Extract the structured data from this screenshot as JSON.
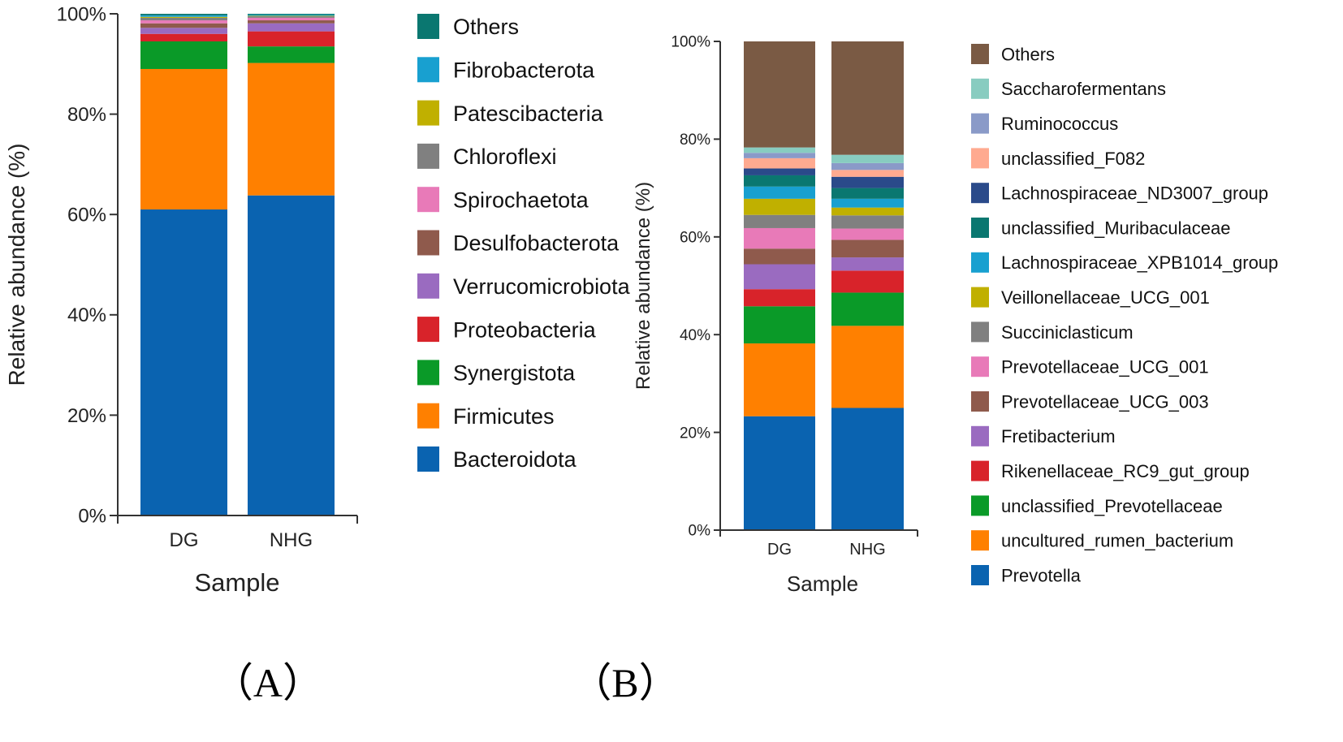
{
  "chart_data": [
    {
      "type": "bar",
      "stacked": true,
      "panel_label": "（A）",
      "title": "",
      "xlabel": "Sample",
      "ylabel": "Relative abundance (%)",
      "categories": [
        "DG",
        "NHG"
      ],
      "ylim": [
        0,
        100
      ],
      "yticks": [
        "0%",
        "20%",
        "40%",
        "60%",
        "80%",
        "100%"
      ],
      "legend_position": "right",
      "series": [
        {
          "name": "Bacteroidota",
          "color": "#0a63b0",
          "values": [
            61.0,
            63.8
          ]
        },
        {
          "name": "Firmicutes",
          "color": "#ff8000",
          "values": [
            28.0,
            26.4
          ]
        },
        {
          "name": "Synergistota",
          "color": "#0a9a28",
          "values": [
            5.5,
            3.3
          ]
        },
        {
          "name": "Proteobacteria",
          "color": "#d8232a",
          "values": [
            1.5,
            3.0
          ]
        },
        {
          "name": "Verrucomicrobiota",
          "color": "#9a6bc0",
          "values": [
            1.2,
            1.6
          ]
        },
        {
          "name": "Desulfobacterota",
          "color": "#8f5a4c",
          "values": [
            0.9,
            0.6
          ]
        },
        {
          "name": "Spirochaetota",
          "color": "#e87ab8",
          "values": [
            0.6,
            0.5
          ]
        },
        {
          "name": "Chloroflexi",
          "color": "#808080",
          "values": [
            0.5,
            0.3
          ]
        },
        {
          "name": "Patescibacteria",
          "color": "#c0b000",
          "values": [
            0.2,
            0.1
          ]
        },
        {
          "name": "Fibrobacterota",
          "color": "#18a0d0",
          "values": [
            0.3,
            0.2
          ]
        },
        {
          "name": "Others",
          "color": "#0a7770",
          "values": [
            0.3,
            0.2
          ]
        }
      ]
    },
    {
      "type": "bar",
      "stacked": true,
      "panel_label": "（B）",
      "title": "",
      "xlabel": "Sample",
      "ylabel": "Relative abundance (%)",
      "categories": [
        "DG",
        "NHG"
      ],
      "ylim": [
        0,
        100
      ],
      "yticks": [
        "0%",
        "20%",
        "40%",
        "60%",
        "80%",
        "100%"
      ],
      "legend_position": "right",
      "series": [
        {
          "name": "Prevotella",
          "color": "#0a63b0",
          "values": [
            23.3,
            25.0
          ]
        },
        {
          "name": "uncultured_rumen_bacterium",
          "color": "#ff8000",
          "values": [
            14.9,
            16.8
          ]
        },
        {
          "name": "unclassified_Prevotellaceae",
          "color": "#0a9a28",
          "values": [
            7.6,
            6.8
          ]
        },
        {
          "name": "Rikenellaceae_RC9_gut_group",
          "color": "#d8232a",
          "values": [
            3.5,
            4.5
          ]
        },
        {
          "name": "Fretibacterium",
          "color": "#9a6bc0",
          "values": [
            5.1,
            2.7
          ]
        },
        {
          "name": "Prevotellaceae_UCG_003",
          "color": "#8f5a4c",
          "values": [
            3.2,
            3.6
          ]
        },
        {
          "name": "Prevotellaceae_UCG_001",
          "color": "#e87ab8",
          "values": [
            4.2,
            2.3
          ]
        },
        {
          "name": "Succiniclasticum",
          "color": "#808080",
          "values": [
            2.7,
            2.7
          ]
        },
        {
          "name": "Veillonellaceae_UCG_001",
          "color": "#c0b000",
          "values": [
            3.3,
            1.6
          ]
        },
        {
          "name": "Lachnospiraceae_XPB1014_group",
          "color": "#18a0d0",
          "values": [
            2.5,
            1.8
          ]
        },
        {
          "name": "unclassified_Muribaculaceae",
          "color": "#0a7770",
          "values": [
            2.3,
            2.2
          ]
        },
        {
          "name": "Lachnospiraceae_ND3007_group",
          "color": "#2a4a8a",
          "values": [
            1.4,
            2.3
          ]
        },
        {
          "name": "unclassified_F082",
          "color": "#ffaa90",
          "values": [
            2.1,
            1.4
          ]
        },
        {
          "name": "Ruminococcus",
          "color": "#8a9ac8",
          "values": [
            1.1,
            1.4
          ]
        },
        {
          "name": "Saccharofermentans",
          "color": "#88ccc0",
          "values": [
            1.1,
            1.7
          ]
        },
        {
          "name": "Others",
          "color": "#7a5a44",
          "values": [
            21.7,
            23.2
          ]
        }
      ]
    }
  ]
}
